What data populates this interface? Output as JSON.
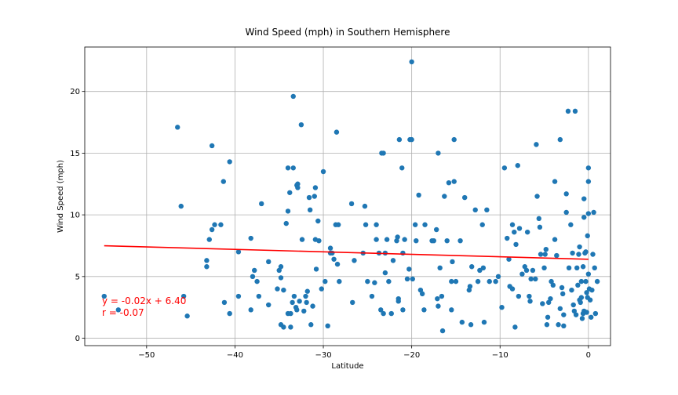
{
  "chart_data": {
    "type": "scatter",
    "title": "Wind Speed (mph) in Southern Hemisphere",
    "xlabel": "Latitude",
    "ylabel": "Wind Speed (mph)",
    "xlim": [
      -57,
      2.5
    ],
    "ylim": [
      -0.6,
      23.6
    ],
    "xticks": [
      -50,
      -40,
      -30,
      -20,
      -10,
      0
    ],
    "xtick_labels": [
      "−50",
      "−40",
      "−30",
      "−20",
      "−10",
      "0"
    ],
    "yticks": [
      0,
      5,
      10,
      15,
      20
    ],
    "ytick_labels": [
      "0",
      "5",
      "10",
      "15",
      "20"
    ],
    "grid": true,
    "point_color": "#1f77b4",
    "regression": {
      "slope": -0.02,
      "intercept": 6.4,
      "x_range": [
        -54.8,
        0
      ],
      "color": "#ff0000",
      "annotation_lines": [
        "y = -0.02x + 6.40",
        "r = -0.07"
      ]
    },
    "points": [
      [
        -54.8,
        3.4
      ],
      [
        -53.2,
        2.3
      ],
      [
        -46.5,
        17.1
      ],
      [
        -46.1,
        10.7
      ],
      [
        -45.8,
        3.4
      ],
      [
        -45.4,
        1.8
      ],
      [
        -43.2,
        6.3
      ],
      [
        -43.2,
        5.8
      ],
      [
        -42.9,
        8.0
      ],
      [
        -42.6,
        15.6
      ],
      [
        -42.6,
        8.8
      ],
      [
        -42.3,
        9.2
      ],
      [
        -41.6,
        9.2
      ],
      [
        -41.3,
        12.7
      ],
      [
        -41.2,
        2.9
      ],
      [
        -40.6,
        14.3
      ],
      [
        -40.6,
        2.0
      ],
      [
        -39.6,
        7.0
      ],
      [
        -39.6,
        3.4
      ],
      [
        -38.2,
        8.1
      ],
      [
        -38.2,
        2.3
      ],
      [
        -38.0,
        5.0
      ],
      [
        -37.8,
        5.5
      ],
      [
        -37.5,
        4.6
      ],
      [
        -37.3,
        3.4
      ],
      [
        -37.0,
        10.9
      ],
      [
        -36.2,
        2.7
      ],
      [
        -36.2,
        6.2
      ],
      [
        -35.2,
        4.0
      ],
      [
        -35.0,
        5.5
      ],
      [
        -34.8,
        4.9
      ],
      [
        -34.8,
        5.8
      ],
      [
        -34.8,
        1.1
      ],
      [
        -34.5,
        0.9
      ],
      [
        -34.5,
        3.9
      ],
      [
        -34.2,
        9.3
      ],
      [
        -34.0,
        13.8
      ],
      [
        -34.0,
        10.3
      ],
      [
        -34.0,
        2.0
      ],
      [
        -33.8,
        11.8
      ],
      [
        -33.7,
        0.9
      ],
      [
        -33.7,
        2.0
      ],
      [
        -33.5,
        2.9
      ],
      [
        -33.4,
        13.8
      ],
      [
        -33.4,
        19.6
      ],
      [
        -33.3,
        3.4
      ],
      [
        -33.1,
        2.5
      ],
      [
        -33.0,
        2.3
      ],
      [
        -33.0,
        12.4
      ],
      [
        -32.9,
        12.5
      ],
      [
        -32.9,
        12.2
      ],
      [
        -32.7,
        3.0
      ],
      [
        -32.5,
        17.3
      ],
      [
        -32.4,
        8.0
      ],
      [
        -32.2,
        2.2
      ],
      [
        -32.0,
        3.4
      ],
      [
        -31.9,
        2.9
      ],
      [
        -31.8,
        3.8
      ],
      [
        -31.6,
        11.4
      ],
      [
        -31.5,
        10.4
      ],
      [
        -31.4,
        1.1
      ],
      [
        -31.2,
        2.6
      ],
      [
        -31.0,
        11.5
      ],
      [
        -30.9,
        12.2
      ],
      [
        -30.9,
        8.0
      ],
      [
        -30.8,
        5.6
      ],
      [
        -30.6,
        9.5
      ],
      [
        -30.5,
        7.9
      ],
      [
        -30.2,
        4.0
      ],
      [
        -30.0,
        13.5
      ],
      [
        -29.8,
        4.6
      ],
      [
        -29.5,
        1.0
      ],
      [
        -29.2,
        7.3
      ],
      [
        -29.2,
        6.9
      ],
      [
        -29.0,
        6.9
      ],
      [
        -28.8,
        6.4
      ],
      [
        -28.6,
        9.2
      ],
      [
        -28.5,
        16.7
      ],
      [
        -28.4,
        6.0
      ],
      [
        -28.3,
        9.2
      ],
      [
        -28.2,
        4.6
      ],
      [
        -26.8,
        10.9
      ],
      [
        -26.7,
        2.9
      ],
      [
        -26.5,
        6.3
      ],
      [
        -25.5,
        6.9
      ],
      [
        -25.3,
        10.7
      ],
      [
        -25.2,
        9.2
      ],
      [
        -25.0,
        4.6
      ],
      [
        -24.5,
        3.4
      ],
      [
        -24.2,
        4.5
      ],
      [
        -24.0,
        9.2
      ],
      [
        -24.0,
        8.0
      ],
      [
        -23.7,
        6.9
      ],
      [
        -23.5,
        2.3
      ],
      [
        -23.4,
        15.0
      ],
      [
        -23.2,
        15.0
      ],
      [
        -23.2,
        2.0
      ],
      [
        -23.0,
        6.9
      ],
      [
        -23.0,
        5.3
      ],
      [
        -22.8,
        8.0
      ],
      [
        -22.6,
        4.6
      ],
      [
        -22.3,
        2.0
      ],
      [
        -22.1,
        6.3
      ],
      [
        -21.7,
        7.9
      ],
      [
        -21.6,
        8.2
      ],
      [
        -21.5,
        3.2
      ],
      [
        -21.5,
        3.0
      ],
      [
        -21.4,
        16.1
      ],
      [
        -21.1,
        13.8
      ],
      [
        -21.0,
        2.3
      ],
      [
        -21.0,
        6.9
      ],
      [
        -20.8,
        8.0
      ],
      [
        -20.5,
        4.8
      ],
      [
        -20.3,
        5.6
      ],
      [
        -20.2,
        16.1
      ],
      [
        -20.0,
        16.1
      ],
      [
        -20.0,
        22.4
      ],
      [
        -19.9,
        4.8
      ],
      [
        -19.6,
        9.2
      ],
      [
        -19.5,
        7.9
      ],
      [
        -19.2,
        11.6
      ],
      [
        -19.0,
        3.9
      ],
      [
        -18.8,
        3.6
      ],
      [
        -18.6,
        2.3
      ],
      [
        -18.5,
        9.2
      ],
      [
        -17.7,
        7.9
      ],
      [
        -17.5,
        7.9
      ],
      [
        -17.2,
        8.8
      ],
      [
        -17.1,
        3.2
      ],
      [
        -17.0,
        2.6
      ],
      [
        -17.0,
        15.0
      ],
      [
        -16.8,
        5.7
      ],
      [
        -16.6,
        3.4
      ],
      [
        -16.5,
        0.6
      ],
      [
        -16.3,
        11.5
      ],
      [
        -16.0,
        7.9
      ],
      [
        -15.8,
        12.6
      ],
      [
        -15.5,
        2.3
      ],
      [
        -15.5,
        4.6
      ],
      [
        -15.4,
        6.2
      ],
      [
        -15.2,
        12.7
      ],
      [
        -15.2,
        16.1
      ],
      [
        -15.0,
        4.6
      ],
      [
        -14.5,
        7.9
      ],
      [
        -14.3,
        1.3
      ],
      [
        -14.0,
        11.4
      ],
      [
        -13.5,
        3.9
      ],
      [
        -13.4,
        4.2
      ],
      [
        -13.3,
        1.1
      ],
      [
        -13.2,
        5.8
      ],
      [
        -12.8,
        10.4
      ],
      [
        -12.5,
        4.6
      ],
      [
        -12.3,
        5.5
      ],
      [
        -12.0,
        9.2
      ],
      [
        -11.9,
        5.7
      ],
      [
        -11.8,
        1.3
      ],
      [
        -11.5,
        10.4
      ],
      [
        -11.2,
        4.6
      ],
      [
        -10.5,
        4.6
      ],
      [
        -10.2,
        5.0
      ],
      [
        -9.8,
        2.5
      ],
      [
        -9.5,
        13.8
      ],
      [
        -9.2,
        8.1
      ],
      [
        -9.0,
        6.4
      ],
      [
        -8.9,
        4.2
      ],
      [
        -8.6,
        9.2
      ],
      [
        -8.6,
        4.0
      ],
      [
        -8.4,
        8.6
      ],
      [
        -8.3,
        0.9
      ],
      [
        -8.2,
        7.6
      ],
      [
        -8.0,
        14.0
      ],
      [
        -7.9,
        3.4
      ],
      [
        -7.8,
        8.9
      ],
      [
        -7.5,
        5.2
      ],
      [
        -7.2,
        5.8
      ],
      [
        -7.0,
        5.5
      ],
      [
        -6.9,
        8.6
      ],
      [
        -6.7,
        3.4
      ],
      [
        -6.6,
        3.0
      ],
      [
        -6.5,
        4.8
      ],
      [
        -6.3,
        5.5
      ],
      [
        -6.0,
        4.8
      ],
      [
        -5.9,
        15.7
      ],
      [
        -5.8,
        11.5
      ],
      [
        -5.6,
        9.7
      ],
      [
        -5.5,
        9.0
      ],
      [
        -5.4,
        6.8
      ],
      [
        -5.2,
        2.8
      ],
      [
        -5.0,
        5.7
      ],
      [
        -4.9,
        6.8
      ],
      [
        -4.8,
        7.2
      ],
      [
        -4.5,
        2.9
      ],
      [
        -4.3,
        3.2
      ],
      [
        -4.2,
        4.6
      ],
      [
        -4.0,
        4.3
      ],
      [
        -3.8,
        12.7
      ],
      [
        -3.8,
        8.0
      ],
      [
        -3.6,
        6.7
      ],
      [
        -3.4,
        1.1
      ],
      [
        -3.2,
        2.4
      ],
      [
        -3.2,
        16.1
      ],
      [
        -3.0,
        4.1
      ],
      [
        -2.8,
        1.9
      ],
      [
        -2.8,
        1.0
      ],
      [
        -2.5,
        10.2
      ],
      [
        -2.5,
        11.7
      ],
      [
        -2.3,
        18.4
      ],
      [
        -2.0,
        9.2
      ],
      [
        -1.8,
        6.9
      ],
      [
        -1.6,
        2.2
      ],
      [
        -1.5,
        18.4
      ],
      [
        -1.4,
        1.9
      ],
      [
        -1.3,
        5.7
      ],
      [
        -1.1,
        6.8
      ],
      [
        -1.0,
        7.4
      ],
      [
        -1.0,
        3.1
      ],
      [
        -0.9,
        2.9
      ],
      [
        -0.8,
        3.3
      ],
      [
        -0.8,
        4.6
      ],
      [
        -0.6,
        5.8
      ],
      [
        -0.5,
        2.2
      ],
      [
        -0.5,
        11.3
      ],
      [
        -0.3,
        4.6
      ],
      [
        -0.2,
        3.7
      ],
      [
        -0.1,
        3.3
      ],
      [
        0.0,
        10.1
      ],
      [
        0.1,
        4.0
      ],
      [
        0.2,
        3.1
      ],
      [
        0.3,
        1.7
      ],
      [
        0.4,
        3.9
      ],
      [
        0.5,
        6.8
      ],
      [
        0.6,
        10.2
      ],
      [
        0.7,
        5.7
      ],
      [
        0.8,
        2.0
      ],
      [
        1.0,
        4.6
      ],
      [
        -2.9,
        3.6
      ],
      [
        -1.9,
        3.9
      ],
      [
        -0.4,
        6.9
      ],
      [
        -2.2,
        5.7
      ],
      [
        -1.7,
        2.7
      ],
      [
        -0.6,
        2.0
      ],
      [
        0.0,
        13.8
      ],
      [
        0.0,
        12.7
      ],
      [
        -0.5,
        9.8
      ],
      [
        -0.1,
        8.3
      ],
      [
        -0.3,
        7.0
      ],
      [
        0.0,
        5.2
      ],
      [
        -0.2,
        2.1
      ],
      [
        -0.7,
        1.6
      ],
      [
        -1.2,
        4.3
      ],
      [
        -4.6,
        1.7
      ],
      [
        -4.7,
        1.1
      ]
    ]
  }
}
